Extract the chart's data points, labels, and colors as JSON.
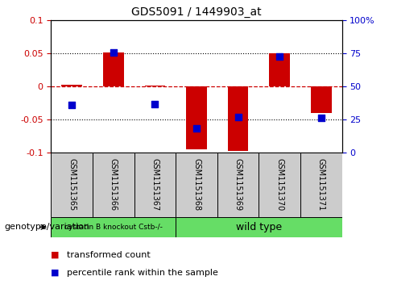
{
  "title": "GDS5091 / 1449903_at",
  "samples": [
    "GSM1151365",
    "GSM1151366",
    "GSM1151367",
    "GSM1151368",
    "GSM1151369",
    "GSM1151370",
    "GSM1151371"
  ],
  "red_bars": [
    0.002,
    0.052,
    0.001,
    -0.095,
    -0.098,
    0.05,
    -0.04
  ],
  "blue_dots": [
    -0.028,
    0.051,
    -0.027,
    -0.063,
    -0.046,
    0.045,
    -0.048
  ],
  "ylim": [
    -0.1,
    0.1
  ],
  "y2lim": [
    0,
    100
  ],
  "yticks": [
    -0.1,
    -0.05,
    0,
    0.05,
    0.1
  ],
  "ytick_labels": [
    "-0.1",
    "-0.05",
    "0",
    "0.05",
    "0.1"
  ],
  "y2ticks": [
    0,
    25,
    50,
    75,
    100
  ],
  "y2ticklabels": [
    "0",
    "25",
    "50",
    "75",
    "100%"
  ],
  "hlines_dotted": [
    0.05,
    -0.05
  ],
  "hline_dashed": 0,
  "red_color": "#cc0000",
  "blue_color": "#0000cc",
  "group1_indices": [
    0,
    1,
    2
  ],
  "group2_indices": [
    3,
    4,
    5,
    6
  ],
  "group1_label": "cystatin B knockout Cstb-/-",
  "group2_label": "wild type",
  "group_color": "#66dd66",
  "sample_bg_color": "#cccccc",
  "genotype_label": "genotype/variation",
  "legend_red": "transformed count",
  "legend_blue": "percentile rank within the sample",
  "bar_width": 0.5,
  "dot_size": 30
}
